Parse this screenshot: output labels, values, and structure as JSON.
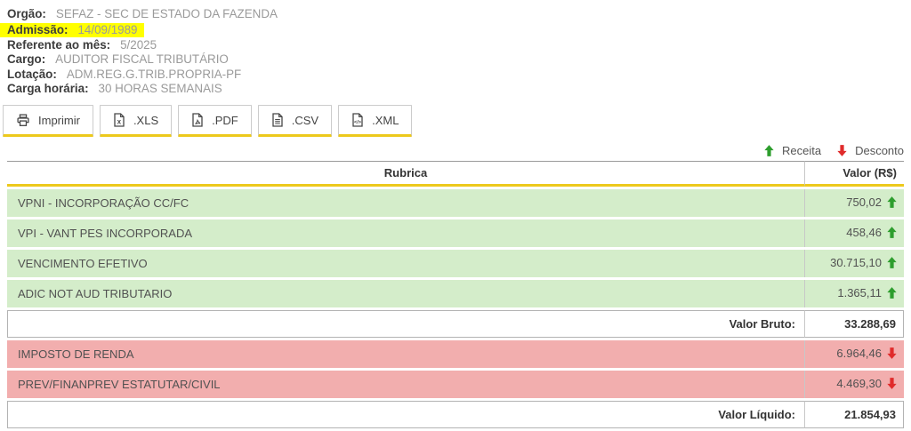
{
  "info": {
    "fields": [
      {
        "label": "Orgão:",
        "value": "SEFAZ - SEC DE ESTADO DA FAZENDA",
        "highlighted": false
      },
      {
        "label": "Admissão:",
        "value": "14/09/1989",
        "highlighted": true
      },
      {
        "label": "Referente ao mês:",
        "value": "5/2025",
        "highlighted": false
      },
      {
        "label": "Cargo:",
        "value": "AUDITOR FISCAL TRIBUTÁRIO",
        "highlighted": false
      },
      {
        "label": "Lotação:",
        "value": "ADM.REG.G.TRIB.PROPRIA-PF",
        "highlighted": false
      },
      {
        "label": "Carga horária:",
        "value": "30 HORAS SEMANAIS",
        "highlighted": false
      }
    ]
  },
  "toolbar": {
    "buttons": [
      {
        "label": "Imprimir",
        "icon": "printer-icon"
      },
      {
        "label": ".XLS",
        "icon": "file-xls-icon"
      },
      {
        "label": ".PDF",
        "icon": "file-pdf-icon"
      },
      {
        "label": ".CSV",
        "icon": "file-csv-icon"
      },
      {
        "label": ".XML",
        "icon": "file-xml-icon"
      }
    ]
  },
  "legend": {
    "receita_label": "Receita",
    "desconto_label": "Desconto",
    "receita_color": "#2e9e2e",
    "desconto_color": "#e02b2b"
  },
  "table": {
    "columns": [
      "Rubrica",
      "Valor (R$)"
    ],
    "rows": [
      {
        "rubrica": "VPNI - INCORPORAÇÃO CC/FC",
        "valor": "750,02",
        "type": "receita"
      },
      {
        "rubrica": "VPI - VANT PES INCORPORADA",
        "valor": "458,46",
        "type": "receita"
      },
      {
        "rubrica": "VENCIMENTO EFETIVO",
        "valor": "30.715,10",
        "type": "receita"
      },
      {
        "rubrica": "ADIC NOT AUD TRIBUTARIO",
        "valor": "1.365,11",
        "type": "receita"
      },
      {
        "rubrica": "Valor Bruto:",
        "valor": "33.288,69",
        "type": "total"
      },
      {
        "rubrica": "IMPOSTO DE RENDA",
        "valor": "6.964,46",
        "type": "desconto"
      },
      {
        "rubrica": "PREV/FINANPREV ESTATUTAR/CIVIL",
        "valor": "4.469,30",
        "type": "desconto"
      },
      {
        "rubrica": "Valor Líquido:",
        "valor": "21.854,93",
        "type": "total"
      }
    ]
  },
  "colors": {
    "receita_row_bg": "#d4edca",
    "desconto_row_bg": "#f2aeae",
    "highlight_bg": "#ffff00",
    "accent_yellow": "#edc91c"
  }
}
